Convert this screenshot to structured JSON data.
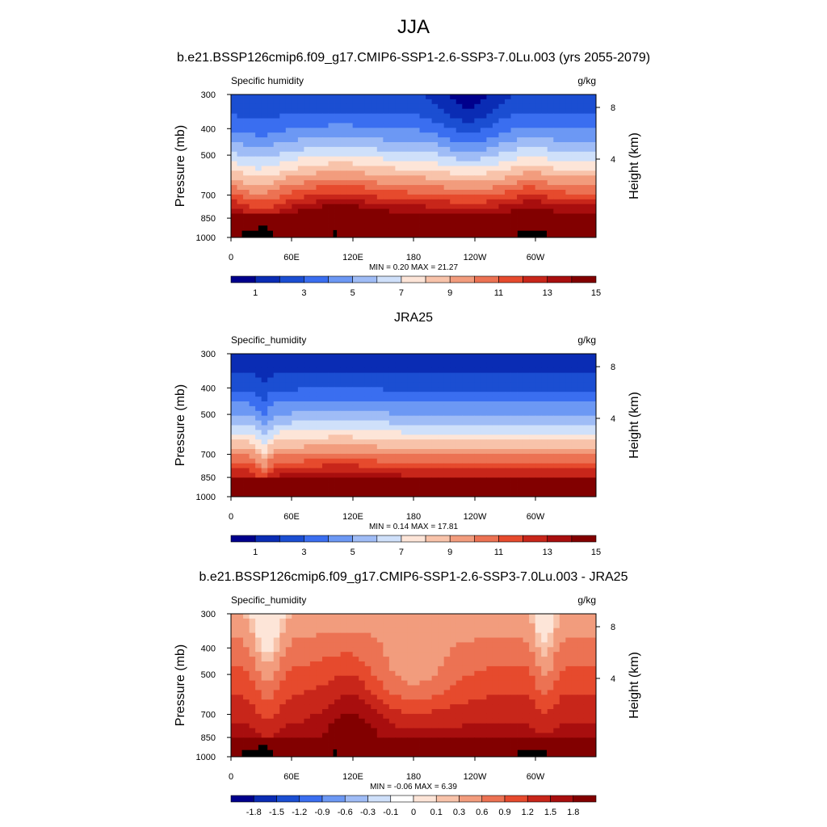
{
  "page": {
    "title": "JJA"
  },
  "chart_data": [
    {
      "type": "heatmap",
      "title": "b.e21.BSSP126cmip6.f09_g17.CMIP6-SSP1-2.6-SSP3-7.0Lu.003 (yrs 2055-2079)",
      "variable_label": "Specific humidity",
      "units": "g/kg",
      "ylabel": "Pressure (mb)",
      "ylabel_right": "Height (km)",
      "x_ticks": [
        "0",
        "60E",
        "120E",
        "180",
        "120W",
        "60W"
      ],
      "y_ticks": [
        "300",
        "400",
        "500",
        "700",
        "850",
        "1000"
      ],
      "y2_ticks": [
        "8",
        "4"
      ],
      "stats": "MIN =  0.20  MAX =  21.27",
      "colorbar_labels": [
        "1",
        "3",
        "5",
        "7",
        "9",
        "11",
        "13",
        "15"
      ],
      "colorbar_colors": [
        "#00008c",
        "#0a2cb4",
        "#1b4ed2",
        "#3a6ef0",
        "#6c98f4",
        "#9fbcf6",
        "#cfe0fa",
        "#fde5d8",
        "#f8c3aa",
        "#f29c7d",
        "#ec7253",
        "#e64a2d",
        "#c8261a",
        "#a80e0e",
        "#820000"
      ]
    },
    {
      "type": "heatmap",
      "title": "JRA25",
      "variable_label": "Specific_humidity",
      "units": "g/kg",
      "ylabel": "Pressure (mb)",
      "ylabel_right": "Height (km)",
      "x_ticks": [
        "0",
        "60E",
        "120E",
        "180",
        "120W",
        "60W"
      ],
      "y_ticks": [
        "300",
        "400",
        "500",
        "700",
        "850",
        "1000"
      ],
      "y2_ticks": [
        "8",
        "4"
      ],
      "stats": "MIN =  0.14  MAX =  17.81",
      "colorbar_labels": [
        "1",
        "3",
        "5",
        "7",
        "9",
        "11",
        "13",
        "15"
      ],
      "colorbar_colors": [
        "#00008c",
        "#0a2cb4",
        "#1b4ed2",
        "#3a6ef0",
        "#6c98f4",
        "#9fbcf6",
        "#cfe0fa",
        "#fde5d8",
        "#f8c3aa",
        "#f29c7d",
        "#ec7253",
        "#e64a2d",
        "#c8261a",
        "#a80e0e",
        "#820000"
      ]
    },
    {
      "type": "heatmap",
      "title": "b.e21.BSSP126cmip6.f09_g17.CMIP6-SSP1-2.6-SSP3-7.0Lu.003 - JRA25",
      "variable_label": "Specific_humidity",
      "units": "g/kg",
      "ylabel": "Pressure (mb)",
      "ylabel_right": "Height (km)",
      "x_ticks": [
        "0",
        "60E",
        "120E",
        "180",
        "120W",
        "60W"
      ],
      "y_ticks": [
        "300",
        "400",
        "500",
        "700",
        "850",
        "1000"
      ],
      "y2_ticks": [
        "8",
        "4"
      ],
      "stats": "MIN = -0.06  MAX =  6.39",
      "colorbar_labels": [
        "-1.8",
        "-1.5",
        "-1.2",
        "-0.9",
        "-0.6",
        "-0.3",
        "-0.1",
        "0",
        "0.1",
        "0.3",
        "0.6",
        "0.9",
        "1.2",
        "1.5",
        "1.8"
      ],
      "colorbar_colors": [
        "#00008c",
        "#0a2cb4",
        "#1b4ed2",
        "#3a6ef0",
        "#6c98f4",
        "#9fbcf6",
        "#cfe0fa",
        "#ffffff",
        "#fde5d8",
        "#f8c3aa",
        "#f29c7d",
        "#ec7253",
        "#e64a2d",
        "#c8261a",
        "#a80e0e",
        "#820000"
      ]
    }
  ]
}
